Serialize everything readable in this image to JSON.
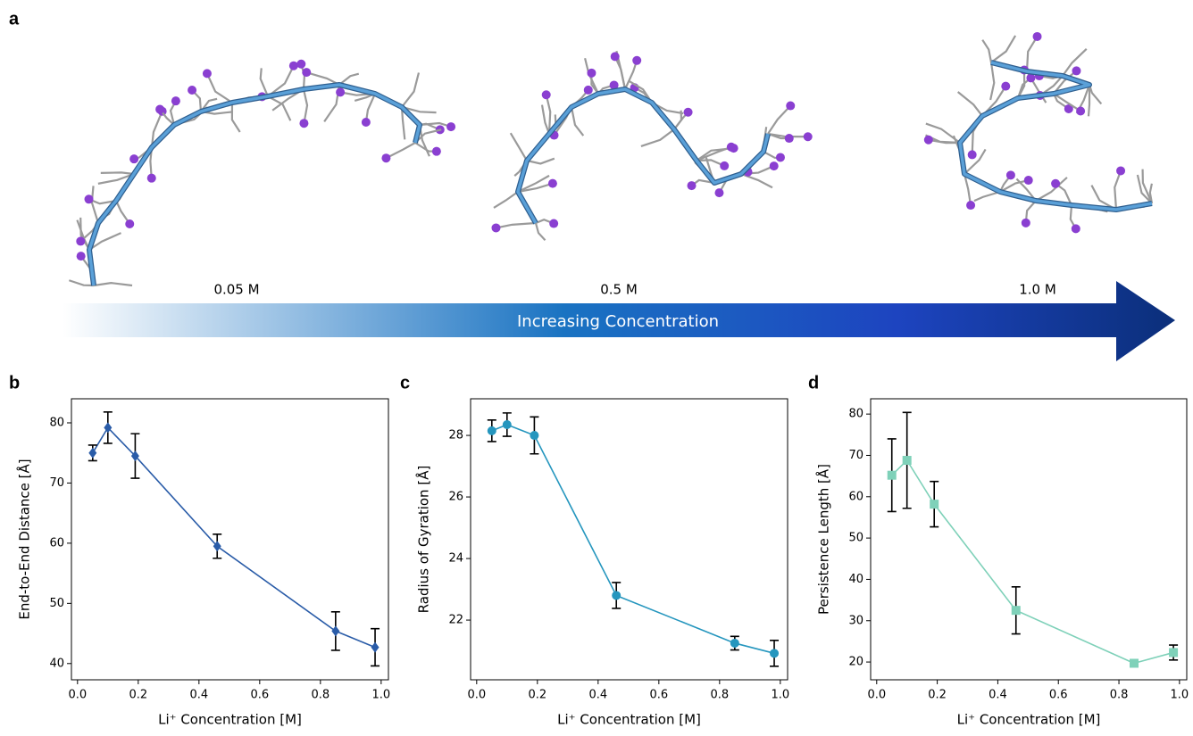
{
  "figure": {
    "panels": [
      "a",
      "b",
      "c",
      "d"
    ],
    "concentrations": [
      "0.05 M",
      "0.5 M",
      "1.0 M"
    ],
    "arrow_label": "Increasing Concentration"
  },
  "chart_data": [
    {
      "type": "line",
      "xlabel": "Li⁺ Concentration [M]",
      "ylabel": "End-to-End Distance [Å]",
      "x": [
        0.05,
        0.1,
        0.19,
        0.46,
        0.85,
        0.98
      ],
      "values": [
        75.0,
        79.2,
        74.5,
        59.5,
        45.4,
        42.7
      ],
      "errors": [
        1.3,
        2.6,
        3.7,
        2.0,
        3.2,
        3.1
      ],
      "color": "#2a5ca8",
      "marker": "diamond",
      "xlim": [
        -0.02,
        1.024
      ],
      "ylim": [
        37.3,
        84
      ],
      "xticks": [
        {
          "value": 0,
          "label": "0.0"
        },
        0.2,
        0.4,
        0.6,
        0.8,
        {
          "value": 1,
          "label": "1.0"
        }
      ],
      "yticks": [
        40,
        50,
        60,
        70,
        80
      ]
    },
    {
      "type": "line",
      "xlabel": "Li⁺ Concentration [M]",
      "ylabel": "Radius of Gyration [Å]",
      "x": [
        0.05,
        0.1,
        0.19,
        0.46,
        0.85,
        0.98
      ],
      "values": [
        28.15,
        28.35,
        28.0,
        22.8,
        21.25,
        20.92
      ],
      "errors": [
        0.35,
        0.38,
        0.6,
        0.42,
        0.22,
        0.42
      ],
      "color": "#2596be",
      "marker": "circle",
      "xlim": [
        -0.02,
        1.024
      ],
      "ylim": [
        20.06,
        29.19
      ],
      "xticks": [
        {
          "value": 0,
          "label": "0.0"
        },
        0.2,
        0.4,
        0.6,
        0.8,
        {
          "value": 1,
          "label": "1.0"
        }
      ],
      "yticks": [
        22,
        24,
        26,
        28
      ]
    },
    {
      "type": "line",
      "xlabel": "Li⁺ Concentration [M]",
      "ylabel": "Persistence Length [Å]",
      "x": [
        0.05,
        0.1,
        0.19,
        0.46,
        0.85,
        0.98
      ],
      "values": [
        65.2,
        68.8,
        58.2,
        32.5,
        19.7,
        22.3
      ],
      "errors": [
        8.8,
        11.6,
        5.5,
        5.7,
        0.8,
        1.8
      ],
      "color": "#7fd1b9",
      "marker": "square",
      "xlim": [
        -0.02,
        1.024
      ],
      "ylim": [
        15.7,
        83.7
      ],
      "xticks": [
        {
          "value": 0,
          "label": "0.0"
        },
        0.2,
        0.4,
        0.6,
        0.8,
        {
          "value": 1,
          "label": "1.0"
        }
      ],
      "yticks": [
        20,
        30,
        40,
        50,
        60,
        70,
        80
      ]
    }
  ]
}
